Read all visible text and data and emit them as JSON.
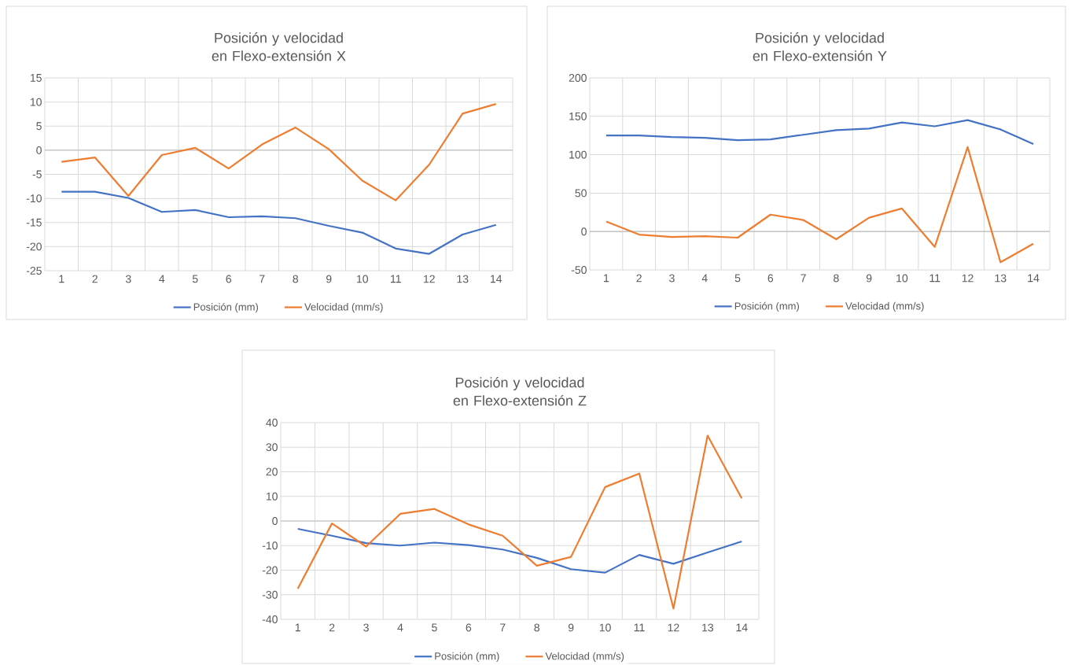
{
  "chart_data": [
    {
      "type": "line",
      "title": "Posición y velocidad en Flexo-extensión X",
      "categories": [
        "1",
        "2",
        "3",
        "4",
        "5",
        "6",
        "7",
        "8",
        "9",
        "10",
        "11",
        "12",
        "13",
        "14"
      ],
      "series": [
        {
          "name": "Posición (mm)",
          "color": "#4472c4",
          "values": [
            -8.6,
            -8.6,
            -9.9,
            -12.8,
            -12.4,
            -13.9,
            -13.7,
            -14.1,
            -15.7,
            -17.1,
            -20.4,
            -21.5,
            -17.5,
            -15.5
          ]
        },
        {
          "name": "Velocidad (mm/s)",
          "color": "#ed7d31",
          "values": [
            -2.4,
            -1.5,
            -9.5,
            -1.0,
            0.5,
            -3.8,
            1.2,
            4.7,
            0.2,
            -6.3,
            -10.4,
            -3.0,
            7.6,
            9.6
          ]
        }
      ],
      "ylim": [
        -25,
        15
      ],
      "yticks": [
        -25,
        -20,
        -15,
        -10,
        -5,
        0,
        5,
        10,
        15
      ],
      "grid": true,
      "legend": "bottom"
    },
    {
      "type": "line",
      "title": "Posición y velocidad en Flexo-extensión Y",
      "categories": [
        "1",
        "2",
        "3",
        "4",
        "5",
        "6",
        "7",
        "8",
        "9",
        "10",
        "11",
        "12",
        "13",
        "14"
      ],
      "series": [
        {
          "name": "Posición (mm)",
          "color": "#4472c4",
          "values": [
            125,
            125,
            123,
            122,
            119,
            120,
            126,
            132,
            134,
            142,
            137,
            145,
            133,
            114
          ]
        },
        {
          "name": "Velocidad (mm/s)",
          "color": "#ed7d31",
          "values": [
            13,
            -4,
            -7,
            -6,
            -8,
            22,
            15,
            -10,
            18,
            30,
            -20,
            110,
            -40,
            -16
          ]
        }
      ],
      "ylim": [
        -50,
        200
      ],
      "yticks": [
        -50,
        0,
        50,
        100,
        150,
        200
      ],
      "grid": true,
      "legend": "bottom"
    },
    {
      "type": "line",
      "title": "Posición y velocidad en Flexo-extensión Z",
      "categories": [
        "1",
        "2",
        "3",
        "4",
        "5",
        "6",
        "7",
        "8",
        "9",
        "10",
        "11",
        "12",
        "13",
        "14"
      ],
      "series": [
        {
          "name": "Posición (mm)",
          "color": "#4472c4",
          "values": [
            -3.2,
            -6.0,
            -9.0,
            -10.0,
            -8.8,
            -9.8,
            -11.6,
            -15.0,
            -19.6,
            -21.0,
            -13.8,
            -17.4,
            -12.8,
            -8.3
          ]
        },
        {
          "name": "Velocidad (mm/s)",
          "color": "#ed7d31",
          "values": [
            -27.5,
            -1.0,
            -10.4,
            2.9,
            4.9,
            -1.4,
            -6.0,
            -18.2,
            -14.6,
            13.8,
            19.3,
            -35.6,
            34.7,
            9.2
          ]
        }
      ],
      "ylim": [
        -40,
        40
      ],
      "yticks": [
        -40,
        -30,
        -20,
        -10,
        0,
        10,
        20,
        30,
        40
      ],
      "grid": true,
      "legend": "bottom"
    }
  ]
}
